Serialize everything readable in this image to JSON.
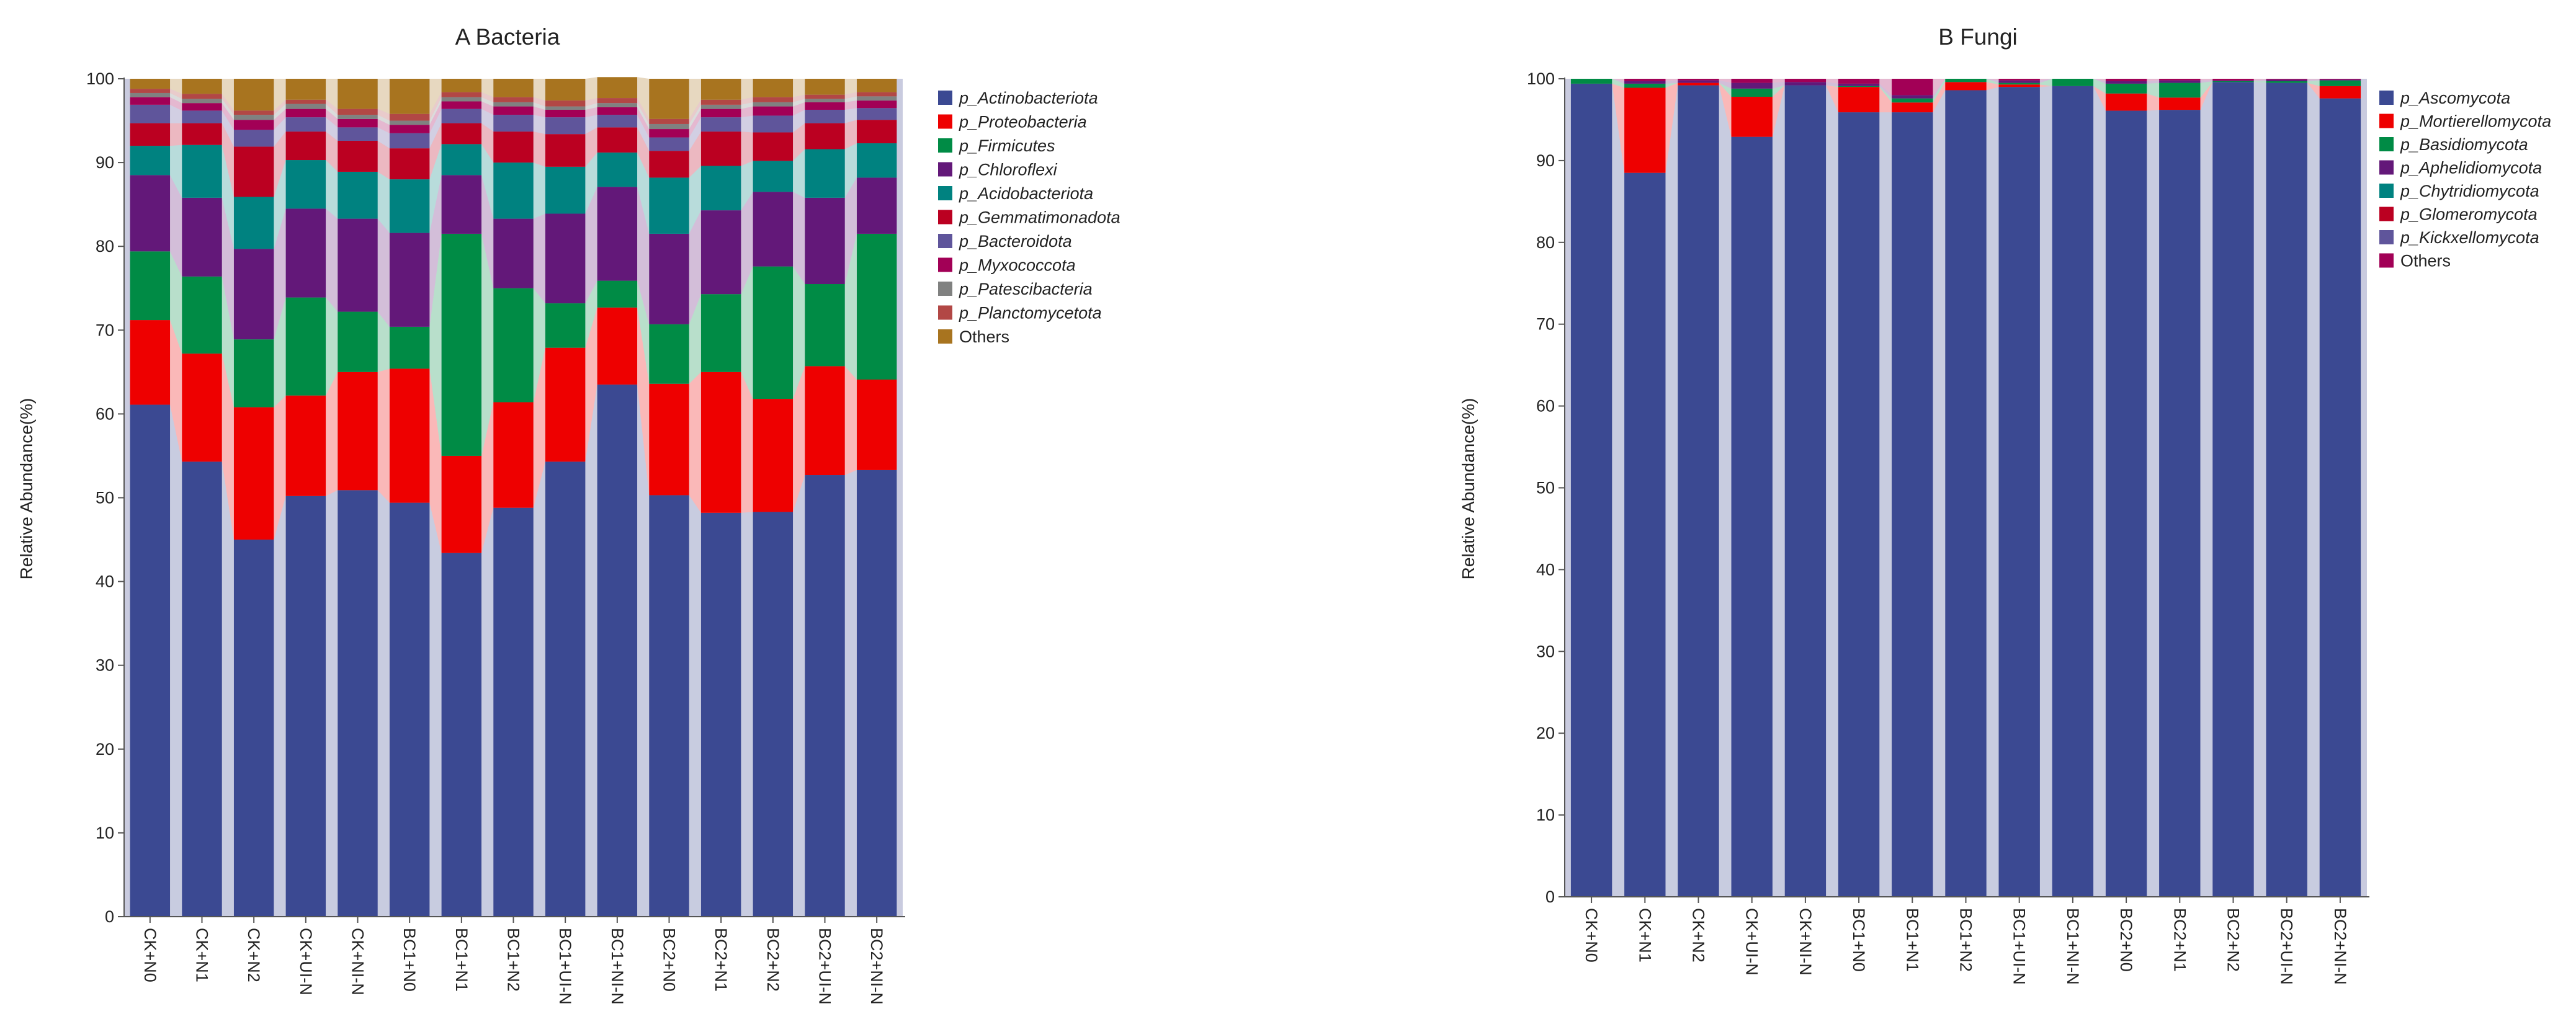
{
  "chart_data": [
    {
      "type": "bar",
      "stacked": true,
      "title": "A Bacteria",
      "xlabel": "",
      "ylabel": "Relative Abundance(%)",
      "ylim": [
        0,
        100
      ],
      "yticks": [
        0,
        10,
        20,
        30,
        40,
        50,
        60,
        70,
        80,
        90,
        100
      ],
      "categories": [
        "CK+N0",
        "CK+N1",
        "CK+N2",
        "CK+UI-N",
        "CK+NI-N",
        "BC1+N0",
        "BC1+N1",
        "BC1+N2",
        "BC1+UI-N",
        "BC1+NI-N",
        "BC2+N0",
        "BC2+N1",
        "BC2+N2",
        "BC2+UI-N",
        "BC2+NI-N"
      ],
      "legend_position": "right",
      "series": [
        {
          "name": "p_Actinobacteriota",
          "color": "#3b4992",
          "values": [
            61.1,
            54.3,
            45.0,
            50.2,
            50.9,
            49.4,
            43.4,
            48.8,
            54.3,
            63.5,
            50.3,
            48.2,
            48.3,
            52.7,
            53.3
          ]
        },
        {
          "name": "p_Proteobacteria",
          "color": "#ee0000",
          "values": [
            10.1,
            12.9,
            15.8,
            12.0,
            14.1,
            16.0,
            11.6,
            12.6,
            13.6,
            9.2,
            13.3,
            16.8,
            13.5,
            13.0,
            10.8
          ]
        },
        {
          "name": "p_Firmicutes",
          "color": "#008b45",
          "values": [
            8.2,
            9.2,
            8.1,
            11.7,
            7.2,
            5.0,
            26.5,
            13.6,
            5.3,
            3.2,
            7.1,
            9.3,
            15.8,
            9.8,
            17.4
          ]
        },
        {
          "name": "p_Chloroflexi",
          "color": "#631879",
          "values": [
            9.1,
            9.4,
            10.8,
            10.6,
            11.1,
            11.2,
            7.0,
            8.3,
            10.7,
            11.2,
            10.8,
            10.0,
            8.9,
            10.3,
            6.7
          ]
        },
        {
          "name": "p_Acidobacteriota",
          "color": "#008280",
          "values": [
            3.5,
            6.3,
            6.2,
            5.8,
            5.6,
            6.4,
            3.7,
            6.7,
            5.6,
            4.1,
            6.7,
            5.3,
            3.7,
            5.8,
            4.1
          ]
        },
        {
          "name": "p_Gemmatimonadota",
          "color": "#bb0021",
          "values": [
            2.7,
            2.6,
            6.0,
            3.4,
            3.7,
            3.7,
            2.5,
            3.7,
            3.9,
            3.0,
            3.2,
            4.1,
            3.4,
            3.1,
            2.8
          ]
        },
        {
          "name": "p_Bacteroidota",
          "color": "#5f559b",
          "values": [
            2.2,
            1.5,
            2.0,
            1.7,
            1.6,
            1.8,
            1.7,
            2.0,
            2.0,
            1.5,
            1.6,
            1.7,
            2.0,
            1.6,
            1.4
          ]
        },
        {
          "name": "p_Myxococcota",
          "color": "#a20056",
          "values": [
            0.9,
            0.9,
            1.2,
            1.0,
            1.0,
            1.0,
            0.9,
            1.0,
            0.9,
            0.9,
            1.0,
            1.0,
            1.1,
            0.9,
            0.9
          ]
        },
        {
          "name": "p_Patescibacteria",
          "color": "#808180",
          "values": [
            0.5,
            0.5,
            0.6,
            0.6,
            0.5,
            0.5,
            0.5,
            0.5,
            0.4,
            0.5,
            0.6,
            0.5,
            0.5,
            0.4,
            0.5
          ]
        },
        {
          "name": "p_Planctomycetota",
          "color": "#b24745",
          "values": [
            0.5,
            0.6,
            0.5,
            0.5,
            0.7,
            0.8,
            0.6,
            0.6,
            0.7,
            0.6,
            0.6,
            0.6,
            0.6,
            0.5,
            0.5
          ]
        },
        {
          "name": "Others",
          "color": "#a8741f",
          "values": [
            1.2,
            1.8,
            3.8,
            2.5,
            3.6,
            4.2,
            1.6,
            2.2,
            2.6,
            2.5,
            4.8,
            2.5,
            2.2,
            1.9,
            1.6
          ]
        }
      ]
    },
    {
      "type": "bar",
      "stacked": true,
      "title": "B Fungi",
      "xlabel": "",
      "ylabel": "Relative Abundance(%)",
      "ylim": [
        0,
        100
      ],
      "yticks": [
        0,
        10,
        20,
        30,
        40,
        50,
        60,
        70,
        80,
        90,
        100
      ],
      "categories": [
        "CK+N0",
        "CK+N1",
        "CK+N2",
        "CK+UI-N",
        "CK+NI-N",
        "BC1+N0",
        "BC1+N1",
        "BC1+N2",
        "BC1+UI-N",
        "BC1+NI-N",
        "BC2+N0",
        "BC2+N1",
        "BC2+N2",
        "BC2+UI-N",
        "BC2+NI-N"
      ],
      "legend_position": "right",
      "series": [
        {
          "name": "p_Ascomycota",
          "color": "#3b4992",
          "values": [
            99.4,
            88.5,
            99.2,
            92.9,
            99.2,
            95.9,
            95.9,
            98.6,
            99.0,
            99.1,
            96.1,
            96.2,
            99.6,
            99.5,
            97.6
          ]
        },
        {
          "name": "p_Mortierellomycota",
          "color": "#ee0000",
          "values": [
            0.0,
            10.4,
            0.3,
            4.9,
            0.0,
            3.1,
            1.2,
            1.0,
            0.3,
            0.0,
            2.1,
            1.5,
            0.0,
            0.0,
            1.5
          ]
        },
        {
          "name": "p_Basidiomycota",
          "color": "#008b45",
          "values": [
            0.6,
            0.5,
            0.0,
            1.0,
            0.0,
            0.1,
            0.5,
            0.4,
            0.2,
            0.9,
            1.2,
            1.8,
            0.1,
            0.2,
            0.7
          ]
        },
        {
          "name": "p_Aphelidiomycota",
          "color": "#631879",
          "values": [
            0.0,
            0.3,
            0.3,
            0.7,
            0.4,
            0.3,
            0.4,
            0.0,
            0.3,
            0.0,
            0.3,
            0.3,
            0.1,
            0.2,
            0.1
          ]
        },
        {
          "name": "p_Chytridiomycota",
          "color": "#008280",
          "values": [
            0.0,
            0.0,
            0.0,
            0.0,
            0.0,
            0.0,
            0.0,
            0.0,
            0.0,
            0.0,
            0.0,
            0.0,
            0.0,
            0.0,
            0.0
          ]
        },
        {
          "name": "p_Glomeromycota",
          "color": "#bb0021",
          "values": [
            0.0,
            0.0,
            0.0,
            0.0,
            0.0,
            0.0,
            0.0,
            0.0,
            0.0,
            0.0,
            0.0,
            0.0,
            0.0,
            0.0,
            0.0
          ]
        },
        {
          "name": "p_Kickxellomycota",
          "color": "#5f559b",
          "values": [
            0.0,
            0.0,
            0.0,
            0.0,
            0.0,
            0.0,
            0.0,
            0.0,
            0.0,
            0.0,
            0.0,
            0.0,
            0.0,
            0.0,
            0.0
          ]
        },
        {
          "name": "Others",
          "color": "#a20056",
          "values": [
            0.0,
            0.3,
            0.2,
            0.5,
            0.4,
            0.6,
            2.0,
            0.0,
            0.2,
            0.0,
            0.3,
            0.2,
            0.2,
            0.1,
            0.1
          ]
        }
      ]
    }
  ]
}
